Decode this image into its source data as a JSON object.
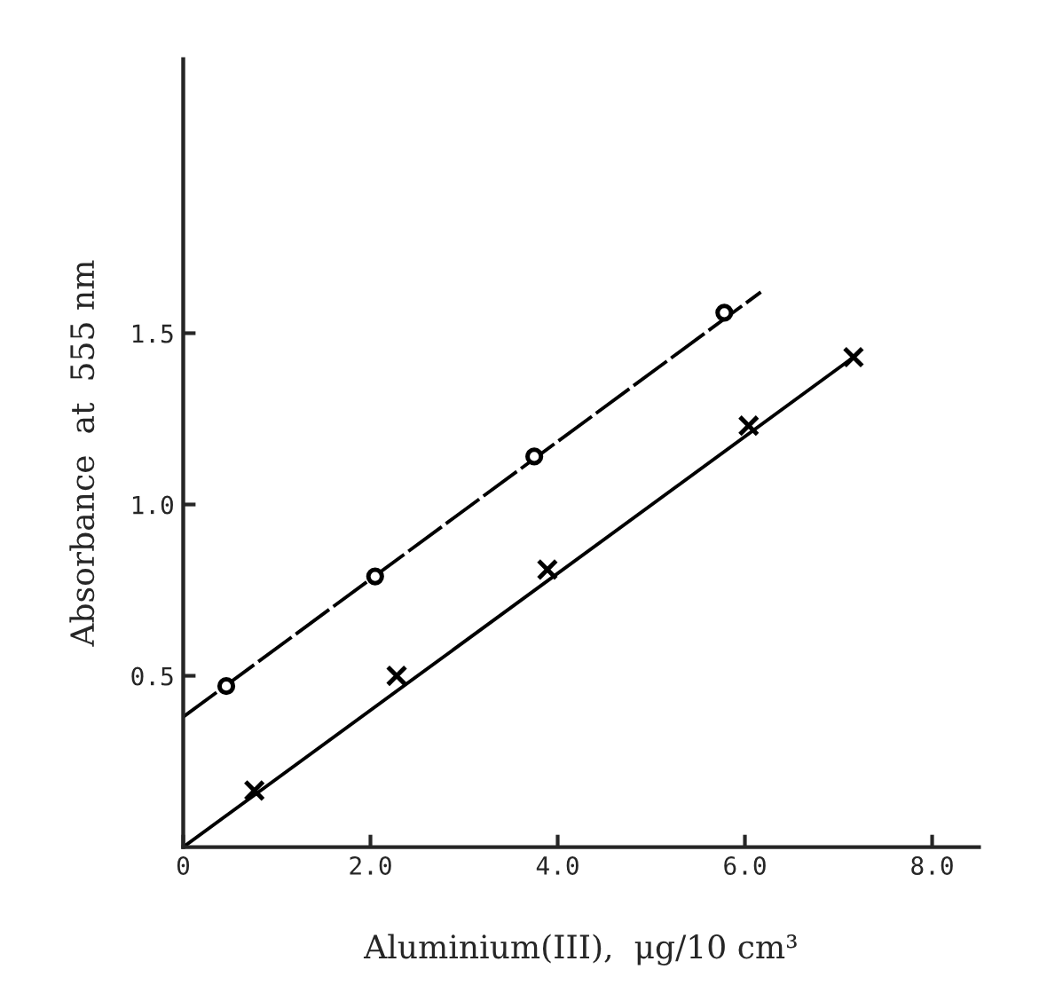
{
  "chart_data": {
    "type": "scatter",
    "xlabel": "Aluminium(III),  μg/10 cm³",
    "ylabel": "Absorbance  at  555 nm",
    "xlim": [
      0,
      8.5
    ],
    "ylim": [
      0,
      2.3
    ],
    "xticks": [
      {
        "value": 0,
        "label": "0"
      },
      {
        "value": 2,
        "label": "2.0"
      },
      {
        "value": 4,
        "label": "4.0"
      },
      {
        "value": 6,
        "label": "6.0"
      },
      {
        "value": 8,
        "label": "8.0"
      }
    ],
    "yticks": [
      {
        "value": 0.5,
        "label": "0.5"
      },
      {
        "value": 1.0,
        "label": "1.0"
      },
      {
        "value": 1.5,
        "label": "1.5"
      }
    ],
    "grid": false,
    "legend": false,
    "series": [
      {
        "type": "line",
        "color": "#000000",
        "marker": "none",
        "line_style": "dashed",
        "x": [
          0,
          6.17
        ],
        "values": [
          0.38,
          1.62
        ]
      },
      {
        "type": "line",
        "color": "#000000",
        "marker": "none",
        "line_style": "solid",
        "x": [
          0,
          7.16
        ],
        "values": [
          0,
          1.43
        ]
      },
      {
        "color": "#000000",
        "marker": "circle",
        "x": [
          0.46,
          2.05,
          3.75,
          5.78
        ],
        "values": [
          0.47,
          0.79,
          1.14,
          1.56
        ]
      },
      {
        "color": "#000000",
        "marker": "cross",
        "x": [
          0.76,
          2.28,
          3.89,
          6.04,
          7.16
        ],
        "values": [
          0.165,
          0.5,
          0.81,
          1.23,
          1.43
        ]
      }
    ]
  }
}
